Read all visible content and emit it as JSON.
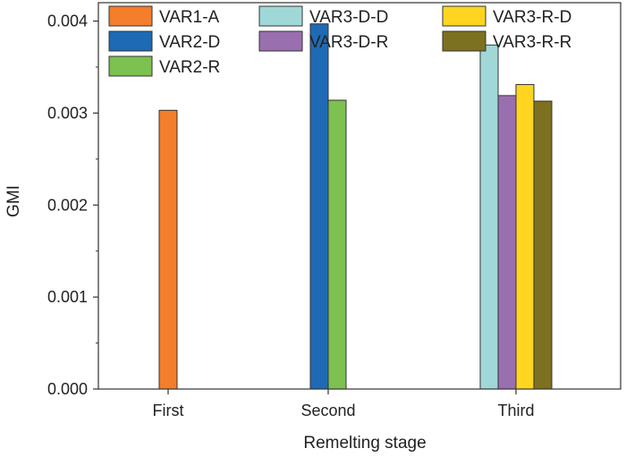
{
  "chart_data": {
    "type": "bar",
    "categories": [
      "First",
      "Second",
      "Third"
    ],
    "xlabel": "Remelting stage",
    "ylabel": "GMI",
    "ylim": [
      0,
      0.0042
    ],
    "yticks": [
      "0.000",
      "0.001",
      "0.002",
      "0.003",
      "0.004"
    ],
    "grid": false,
    "legend_position": "top, inside, 3 columns",
    "series": [
      {
        "name": "VAR1-A",
        "color": "#f47e2c",
        "values": [
          0.00303,
          null,
          null
        ]
      },
      {
        "name": "VAR2-D",
        "color": "#1f6ab5",
        "values": [
          null,
          0.00397,
          null
        ]
      },
      {
        "name": "VAR2-R",
        "color": "#7dc150",
        "values": [
          null,
          0.00314,
          null
        ]
      },
      {
        "name": "VAR3-D-D",
        "color": "#a0d8d8",
        "values": [
          null,
          null,
          0.00374
        ]
      },
      {
        "name": "VAR3-D-R",
        "color": "#9a6fb0",
        "values": [
          null,
          null,
          0.00319
        ]
      },
      {
        "name": "VAR3-R-D",
        "color": "#ffd520",
        "values": [
          null,
          null,
          0.00331
        ]
      },
      {
        "name": "VAR3-R-R",
        "color": "#7d7121",
        "values": [
          null,
          null,
          0.00313
        ]
      }
    ]
  }
}
